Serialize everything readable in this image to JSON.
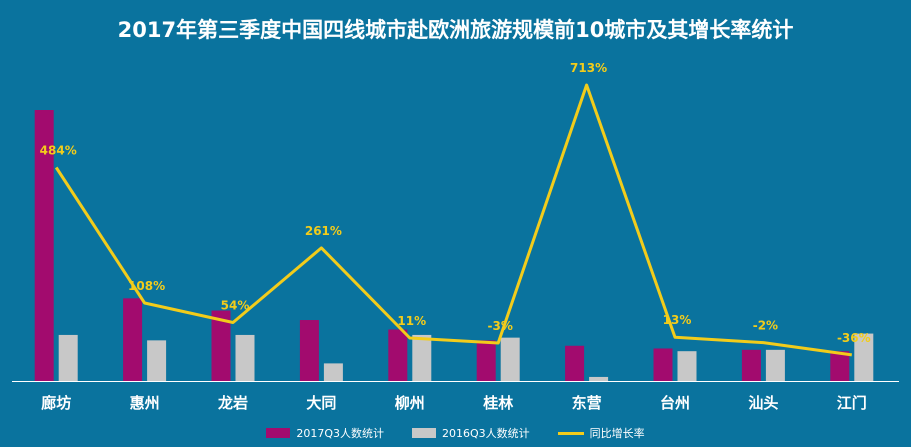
{
  "chart_data": {
    "type": "bar",
    "title": "2017年第三季度中国四线城市赴欧洲旅游规模前10城市及其增长率统计",
    "categories": [
      "廊坊",
      "惠州",
      "龙岩",
      "大同",
      "柳州",
      "桂林",
      "东营",
      "台州",
      "汕头",
      "江门"
    ],
    "series": [
      {
        "name": "2017Q3人数统计",
        "kind": "bar",
        "color": "#A20B6E",
        "values": [
          100,
          30.5,
          26,
          22.5,
          19,
          15,
          13,
          12,
          11.5,
          11
        ]
      },
      {
        "name": "2016Q3人数统计",
        "kind": "bar",
        "color": "#C8C8C8",
        "values": [
          17,
          15,
          17,
          6.5,
          17,
          16,
          1.5,
          11,
          11.5,
          17.5
        ]
      },
      {
        "name": "同比增长率",
        "kind": "line",
        "color": "#F2CC1B",
        "values": [
          484,
          108,
          54,
          261,
          11,
          -3,
          713,
          13,
          -2,
          -36
        ],
        "labels": [
          "484%",
          "108%",
          "54%",
          "261%",
          "11%",
          "-3%",
          "713%",
          "13%",
          "-2%",
          "-36%"
        ]
      }
    ],
    "colors": {
      "background": "#0A739E",
      "axis": "#FFFFFF",
      "label": "#F2CC1B"
    }
  }
}
